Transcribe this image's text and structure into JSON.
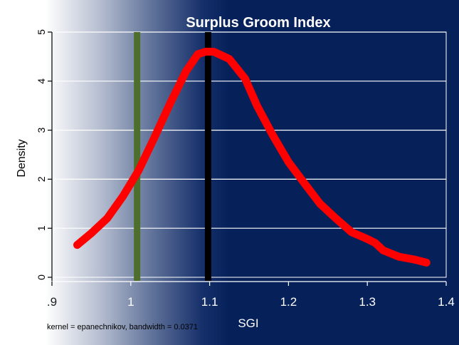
{
  "chart_data": {
    "type": "line",
    "title": "Surplus Groom Index",
    "xlabel": "SGI",
    "ylabel": "Density",
    "note": "kernel = epanechnikov, bandwidth = 0.0371",
    "xlim": [
      0.9,
      1.4
    ],
    "ylim": [
      0,
      5
    ],
    "x_ticks": [
      0.9,
      1.0,
      1.1,
      1.2,
      1.3,
      1.4
    ],
    "x_tick_labels": [
      ".9",
      "1",
      "1.1",
      "1.2",
      "1.3",
      "1.4"
    ],
    "y_ticks": [
      0,
      1,
      2,
      3,
      4,
      5
    ],
    "y_tick_labels": [
      "0",
      "1",
      "2",
      "3",
      "4",
      "5"
    ],
    "grid": true,
    "series": [
      {
        "color": "#ff0000",
        "x": [
          0.932,
          0.95,
          0.97,
          0.99,
          1.01,
          1.03,
          1.05,
          1.07,
          1.085,
          1.095,
          1.105,
          1.125,
          1.145,
          1.16,
          1.18,
          1.2,
          1.22,
          1.24,
          1.26,
          1.28,
          1.3,
          1.31,
          1.32,
          1.34,
          1.36,
          1.375
        ],
        "y": [
          0.66,
          0.9,
          1.2,
          1.65,
          2.18,
          2.85,
          3.55,
          4.2,
          4.55,
          4.6,
          4.6,
          4.45,
          4.05,
          3.5,
          2.9,
          2.35,
          1.92,
          1.5,
          1.2,
          0.92,
          0.78,
          0.7,
          0.55,
          0.42,
          0.36,
          0.3
        ]
      }
    ],
    "vlines": [
      {
        "x": 1.008,
        "color": "#4e6e2b"
      },
      {
        "x": 1.098,
        "color": "#000000"
      }
    ],
    "colors": {
      "background_dark": "#06205a",
      "background_light": "#ffffff",
      "grid": "#ffffff",
      "axis": "#000000"
    }
  }
}
